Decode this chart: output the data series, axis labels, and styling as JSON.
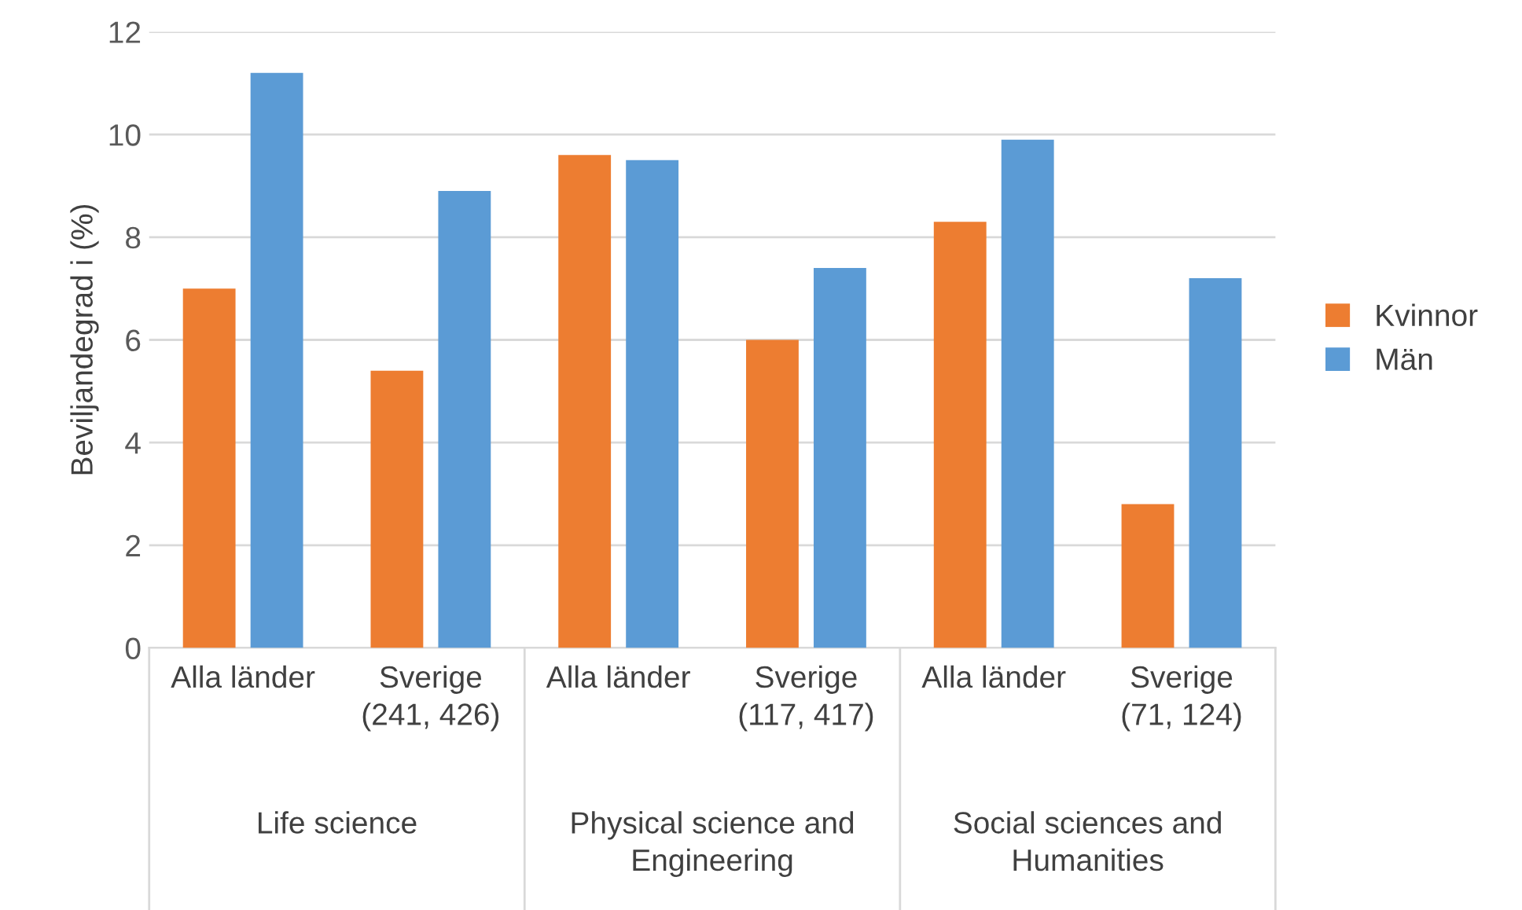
{
  "chart_data": {
    "type": "bar",
    "ylabel": "Beviljandegrad i (%)",
    "categories": [
      "Alla länder",
      "Sverige\n(241, 426)",
      "Alla länder",
      "Sverige\n(117, 417)",
      "Alla länder",
      "Sverige\n(71, 124)"
    ],
    "series": [
      {
        "name": "Kvinnor",
        "color": "#ed7d31",
        "values": [
          7.0,
          5.4,
          9.6,
          6.0,
          8.3,
          2.8
        ]
      },
      {
        "name": "Män",
        "color": "#5b9bd5",
        "values": [
          11.2,
          8.9,
          9.5,
          7.4,
          9.9,
          7.2
        ]
      }
    ],
    "annotations": [
      "Life science",
      "Physical science and\nEngineering",
      "Social sciences and\nHumanities"
    ],
    "ylim": [
      0,
      12
    ],
    "yticks": [
      0,
      2,
      4,
      6,
      8,
      10,
      12
    ],
    "grid": "y",
    "legend": "right"
  }
}
